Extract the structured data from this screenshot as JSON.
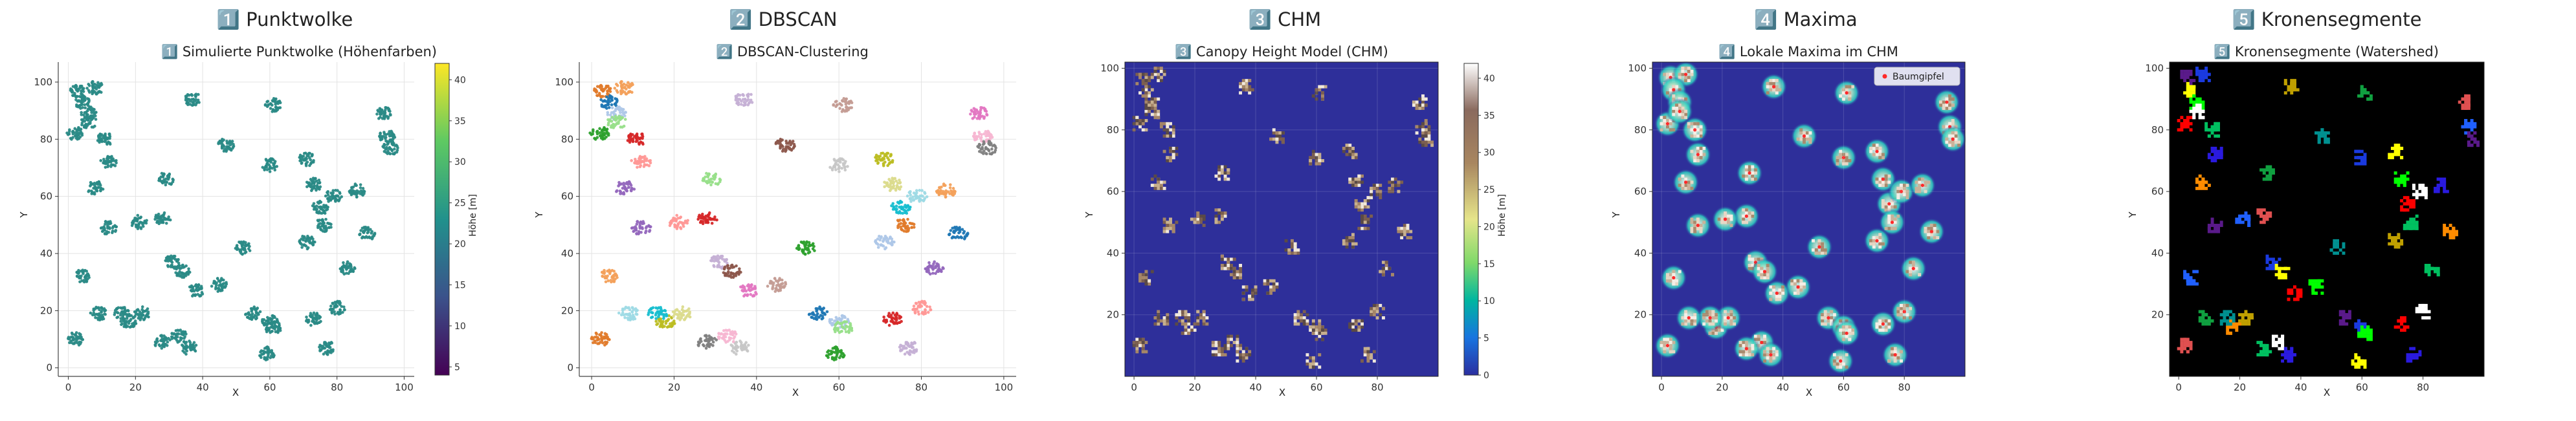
{
  "panels": [
    {
      "heading": "1️⃣ Punktwolke",
      "title": "1️⃣ Simulierte Punktwolke (Höhenfarben)",
      "xlabel": "X",
      "ylabel": "Y",
      "xticks": [
        "0",
        "20",
        "40",
        "60",
        "80",
        "100"
      ],
      "yticks": [
        "0",
        "20",
        "40",
        "60",
        "80",
        "100"
      ],
      "colorbar_label": "Höhe [m]",
      "colorbar_ticks": [
        "5",
        "10",
        "15",
        "20",
        "25",
        "30",
        "35",
        "40"
      ]
    },
    {
      "heading": "2️⃣ DBSCAN",
      "title": "2️⃣ DBSCAN-Clustering",
      "xlabel": "X",
      "ylabel": "Y",
      "xticks": [
        "0",
        "20",
        "40",
        "60",
        "80",
        "100"
      ],
      "yticks": [
        "0",
        "20",
        "40",
        "60",
        "80",
        "100"
      ]
    },
    {
      "heading": "3️⃣ CHM",
      "title": "3️⃣ Canopy Height Model (CHM)",
      "xlabel": "X",
      "ylabel": "Y",
      "xticks": [
        "0",
        "20",
        "40",
        "60",
        "80"
      ],
      "yticks": [
        "20",
        "40",
        "60",
        "80",
        "100"
      ],
      "colorbar_label": "Höhe [m]",
      "colorbar_ticks": [
        "0",
        "5",
        "10",
        "15",
        "20",
        "25",
        "30",
        "35",
        "40"
      ]
    },
    {
      "heading": "4️⃣ Maxima",
      "title": "4️⃣ Lokale Maxima im CHM",
      "xlabel": "X",
      "ylabel": "Y",
      "xticks": [
        "0",
        "20",
        "40",
        "60",
        "80"
      ],
      "yticks": [
        "20",
        "40",
        "60",
        "80",
        "100"
      ],
      "legend": "Baumgipfel"
    },
    {
      "heading": "5️⃣ Kronensegmente",
      "title": "5️⃣ Kronensegmente (Watershed)",
      "xlabel": "X",
      "ylabel": "Y",
      "xticks": [
        "0",
        "20",
        "40",
        "60",
        "80"
      ],
      "yticks": [
        "20",
        "40",
        "60",
        "80",
        "100"
      ]
    }
  ],
  "colors": {
    "scatter_main": "#2a8a86",
    "chm_background": "#2e2f9a",
    "seg_background": "#000000",
    "halo": "#3fd6c2",
    "cluster_palette": [
      "#e07a2a",
      "#f3a05a",
      "#1f77b4",
      "#aec7e8",
      "#2ca02c",
      "#98df8a",
      "#d62728",
      "#ff9896",
      "#9467bd",
      "#c5b0d5",
      "#8c564b",
      "#c49c94",
      "#e377c2",
      "#f7b6d2",
      "#7f7f7f",
      "#c7c7c7",
      "#bcbd22",
      "#dbdb8d",
      "#17becf",
      "#9edae5"
    ],
    "segment_palette": [
      "#5a1a8a",
      "#1a3adf",
      "#ffff00",
      "#00ff00",
      "#ff0000",
      "#ffffff",
      "#00c060",
      "#2a1adf",
      "#ff8c00",
      "#c0a000",
      "#009090",
      "#10a040",
      "#e05050",
      "#2060ff"
    ]
  },
  "chart_data": [
    {
      "type": "scatter",
      "title": "1️⃣ Simulierte Punktwolke (Höhenfarben)",
      "xlabel": "X",
      "ylabel": "Y",
      "xlim": [
        -3,
        103
      ],
      "ylim": [
        -3,
        107
      ],
      "grid": true,
      "colorbar": {
        "label": "Höhe [m]",
        "range": [
          5,
          42
        ]
      },
      "trees": [
        [
          3,
          97
        ],
        [
          8,
          98
        ],
        [
          4,
          93
        ],
        [
          6,
          89
        ],
        [
          2,
          82
        ],
        [
          6,
          86
        ],
        [
          11,
          80
        ],
        [
          12,
          72
        ],
        [
          8,
          63
        ],
        [
          37,
          94
        ],
        [
          47,
          78
        ],
        [
          61,
          92
        ],
        [
          94,
          89
        ],
        [
          95,
          81
        ],
        [
          96,
          77
        ],
        [
          60,
          71
        ],
        [
          71,
          73
        ],
        [
          73,
          64
        ],
        [
          75,
          56
        ],
        [
          79,
          60
        ],
        [
          76,
          50
        ],
        [
          86,
          62
        ],
        [
          89,
          47
        ],
        [
          71,
          44
        ],
        [
          52,
          42
        ],
        [
          29,
          66
        ],
        [
          28,
          52
        ],
        [
          21,
          51
        ],
        [
          12,
          49
        ],
        [
          31,
          37
        ],
        [
          34,
          34
        ],
        [
          45,
          29
        ],
        [
          38,
          27
        ],
        [
          33,
          11
        ],
        [
          28,
          9
        ],
        [
          36,
          7
        ],
        [
          18,
          16
        ],
        [
          22,
          19
        ],
        [
          16,
          19
        ],
        [
          9,
          19
        ],
        [
          2,
          10
        ],
        [
          4,
          32
        ],
        [
          55,
          19
        ],
        [
          60,
          16
        ],
        [
          59,
          5
        ],
        [
          61,
          14
        ],
        [
          73,
          17
        ],
        [
          80,
          21
        ],
        [
          83,
          35
        ],
        [
          77,
          7
        ]
      ]
    },
    {
      "type": "scatter",
      "title": "2️⃣ DBSCAN-Clustering",
      "xlabel": "X",
      "ylabel": "Y",
      "xlim": [
        -3,
        103
      ],
      "ylim": [
        -3,
        107
      ],
      "grid": true,
      "note": "trees colored by DBSCAN cluster id",
      "trees": [
        [
          3,
          97
        ],
        [
          8,
          98
        ],
        [
          4,
          93
        ],
        [
          6,
          89
        ],
        [
          2,
          82
        ],
        [
          6,
          86
        ],
        [
          11,
          80
        ],
        [
          12,
          72
        ],
        [
          8,
          63
        ],
        [
          37,
          94
        ],
        [
          47,
          78
        ],
        [
          61,
          92
        ],
        [
          94,
          89
        ],
        [
          95,
          81
        ],
        [
          96,
          77
        ],
        [
          60,
          71
        ],
        [
          71,
          73
        ],
        [
          73,
          64
        ],
        [
          75,
          56
        ],
        [
          79,
          60
        ],
        [
          76,
          50
        ],
        [
          86,
          62
        ],
        [
          89,
          47
        ],
        [
          71,
          44
        ],
        [
          52,
          42
        ],
        [
          29,
          66
        ],
        [
          28,
          52
        ],
        [
          21,
          51
        ],
        [
          12,
          49
        ],
        [
          31,
          37
        ],
        [
          34,
          34
        ],
        [
          45,
          29
        ],
        [
          38,
          27
        ],
        [
          33,
          11
        ],
        [
          28,
          9
        ],
        [
          36,
          7
        ],
        [
          18,
          16
        ],
        [
          22,
          19
        ],
        [
          16,
          19
        ],
        [
          9,
          19
        ],
        [
          2,
          10
        ],
        [
          4,
          32
        ],
        [
          55,
          19
        ],
        [
          60,
          16
        ],
        [
          59,
          5
        ],
        [
          61,
          14
        ],
        [
          73,
          17
        ],
        [
          80,
          21
        ],
        [
          83,
          35
        ],
        [
          77,
          7
        ]
      ]
    },
    {
      "type": "heatmap",
      "title": "3️⃣ Canopy Height Model (CHM)",
      "xlabel": "X",
      "ylabel": "Y",
      "xlim": [
        -3,
        100
      ],
      "ylim": [
        0,
        102
      ],
      "colorbar": {
        "label": "Höhe [m]",
        "range": [
          0,
          42
        ]
      },
      "crowns": [
        [
          3,
          97
        ],
        [
          8,
          98
        ],
        [
          4,
          93
        ],
        [
          6,
          89
        ],
        [
          2,
          82
        ],
        [
          6,
          86
        ],
        [
          11,
          80
        ],
        [
          12,
          72
        ],
        [
          8,
          63
        ],
        [
          37,
          94
        ],
        [
          47,
          78
        ],
        [
          61,
          92
        ],
        [
          94,
          89
        ],
        [
          95,
          81
        ],
        [
          96,
          77
        ],
        [
          60,
          71
        ],
        [
          71,
          73
        ],
        [
          73,
          64
        ],
        [
          75,
          56
        ],
        [
          79,
          60
        ],
        [
          76,
          50
        ],
        [
          86,
          62
        ],
        [
          89,
          47
        ],
        [
          71,
          44
        ],
        [
          52,
          42
        ],
        [
          29,
          66
        ],
        [
          28,
          52
        ],
        [
          21,
          51
        ],
        [
          12,
          49
        ],
        [
          31,
          37
        ],
        [
          34,
          34
        ],
        [
          45,
          29
        ],
        [
          38,
          27
        ],
        [
          33,
          11
        ],
        [
          28,
          9
        ],
        [
          36,
          7
        ],
        [
          18,
          16
        ],
        [
          22,
          19
        ],
        [
          16,
          19
        ],
        [
          9,
          19
        ],
        [
          2,
          10
        ],
        [
          4,
          32
        ],
        [
          55,
          19
        ],
        [
          60,
          16
        ],
        [
          59,
          5
        ],
        [
          61,
          14
        ],
        [
          73,
          17
        ],
        [
          80,
          21
        ],
        [
          83,
          35
        ],
        [
          77,
          7
        ]
      ]
    },
    {
      "type": "heatmap",
      "title": "4️⃣ Lokale Maxima im CHM",
      "xlabel": "X",
      "ylabel": "Y",
      "xlim": [
        -3,
        100
      ],
      "ylim": [
        0,
        102
      ],
      "legend": {
        "labels": [
          "Baumgipfel"
        ],
        "position": "top-right"
      },
      "crowns": [
        [
          3,
          97
        ],
        [
          8,
          98
        ],
        [
          4,
          93
        ],
        [
          6,
          89
        ],
        [
          2,
          82
        ],
        [
          6,
          86
        ],
        [
          11,
          80
        ],
        [
          12,
          72
        ],
        [
          8,
          63
        ],
        [
          37,
          94
        ],
        [
          47,
          78
        ],
        [
          61,
          92
        ],
        [
          94,
          89
        ],
        [
          95,
          81
        ],
        [
          96,
          77
        ],
        [
          60,
          71
        ],
        [
          71,
          73
        ],
        [
          73,
          64
        ],
        [
          75,
          56
        ],
        [
          79,
          60
        ],
        [
          76,
          50
        ],
        [
          86,
          62
        ],
        [
          89,
          47
        ],
        [
          71,
          44
        ],
        [
          52,
          42
        ],
        [
          29,
          66
        ],
        [
          28,
          52
        ],
        [
          21,
          51
        ],
        [
          12,
          49
        ],
        [
          31,
          37
        ],
        [
          34,
          34
        ],
        [
          45,
          29
        ],
        [
          38,
          27
        ],
        [
          33,
          11
        ],
        [
          28,
          9
        ],
        [
          36,
          7
        ],
        [
          18,
          16
        ],
        [
          22,
          19
        ],
        [
          16,
          19
        ],
        [
          9,
          19
        ],
        [
          2,
          10
        ],
        [
          4,
          32
        ],
        [
          55,
          19
        ],
        [
          60,
          16
        ],
        [
          59,
          5
        ],
        [
          61,
          14
        ],
        [
          73,
          17
        ],
        [
          80,
          21
        ],
        [
          83,
          35
        ],
        [
          77,
          7
        ]
      ]
    },
    {
      "type": "heatmap",
      "title": "5️⃣ Kronensegmente (Watershed)",
      "xlabel": "X",
      "ylabel": "Y",
      "xlim": [
        -3,
        100
      ],
      "ylim": [
        0,
        102
      ],
      "segments": [
        [
          3,
          97
        ],
        [
          8,
          98
        ],
        [
          4,
          93
        ],
        [
          6,
          89
        ],
        [
          2,
          82
        ],
        [
          6,
          86
        ],
        [
          11,
          80
        ],
        [
          12,
          72
        ],
        [
          8,
          63
        ],
        [
          37,
          94
        ],
        [
          47,
          78
        ],
        [
          61,
          92
        ],
        [
          94,
          89
        ],
        [
          95,
          81
        ],
        [
          96,
          77
        ],
        [
          60,
          71
        ],
        [
          71,
          73
        ],
        [
          73,
          64
        ],
        [
          75,
          56
        ],
        [
          79,
          60
        ],
        [
          76,
          50
        ],
        [
          86,
          62
        ],
        [
          89,
          47
        ],
        [
          71,
          44
        ],
        [
          52,
          42
        ],
        [
          29,
          66
        ],
        [
          28,
          52
        ],
        [
          21,
          51
        ],
        [
          12,
          49
        ],
        [
          31,
          37
        ],
        [
          34,
          34
        ],
        [
          45,
          29
        ],
        [
          38,
          27
        ],
        [
          33,
          11
        ],
        [
          28,
          9
        ],
        [
          36,
          7
        ],
        [
          18,
          16
        ],
        [
          22,
          19
        ],
        [
          16,
          19
        ],
        [
          9,
          19
        ],
        [
          2,
          10
        ],
        [
          4,
          32
        ],
        [
          55,
          19
        ],
        [
          60,
          16
        ],
        [
          59,
          5
        ],
        [
          61,
          14
        ],
        [
          73,
          17
        ],
        [
          80,
          21
        ],
        [
          83,
          35
        ],
        [
          77,
          7
        ]
      ]
    }
  ]
}
